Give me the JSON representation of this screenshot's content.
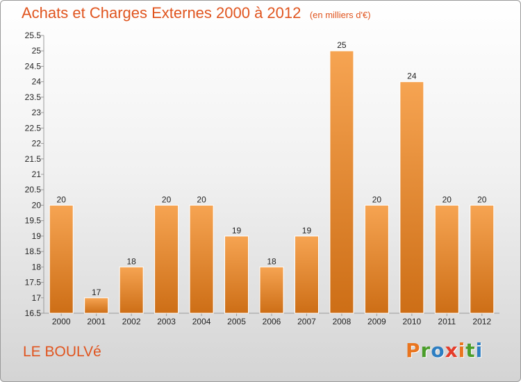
{
  "header": {
    "title": "Achats et Charges Externes 2000 à 2012",
    "unit": "(en milliers d'€)"
  },
  "footer": {
    "place": "LE BOULVé",
    "brand": "Proxiti",
    "brand_colors": [
      "#e9751f",
      "#4a9d2a",
      "#2d7ec2",
      "#e53c2a",
      "#e9751f",
      "#4a9d2a",
      "#2d7ec2"
    ]
  },
  "colors": {
    "bar": "#f0923a",
    "bar_dark": "#c96a12",
    "accent": "#e0541e"
  },
  "chart_data": {
    "type": "bar",
    "title": "Achats et Charges Externes 2000 à 2012",
    "subtitle": "(en milliers d'€)",
    "categories": [
      "2000",
      "2001",
      "2002",
      "2003",
      "2004",
      "2005",
      "2006",
      "2007",
      "2008",
      "2009",
      "2010",
      "2011",
      "2012"
    ],
    "values": [
      20,
      17,
      18,
      20,
      20,
      19,
      18,
      19,
      25,
      20,
      24,
      20,
      20
    ],
    "value_labels": [
      "20",
      "17",
      "18",
      "20",
      "20",
      "19",
      "18",
      "19",
      "25",
      "20",
      "24",
      "20",
      "20"
    ],
    "yticks": [
      "16.5",
      "17",
      "17.5",
      "18",
      "18.5",
      "19",
      "19.5",
      "20",
      "20.5",
      "21",
      "21.5",
      "22",
      "22.5",
      "23",
      "23.5",
      "24",
      "24.5",
      "25",
      "25.5"
    ],
    "ylim": [
      16.5,
      25.5
    ],
    "grid": false,
    "legend": "none"
  }
}
